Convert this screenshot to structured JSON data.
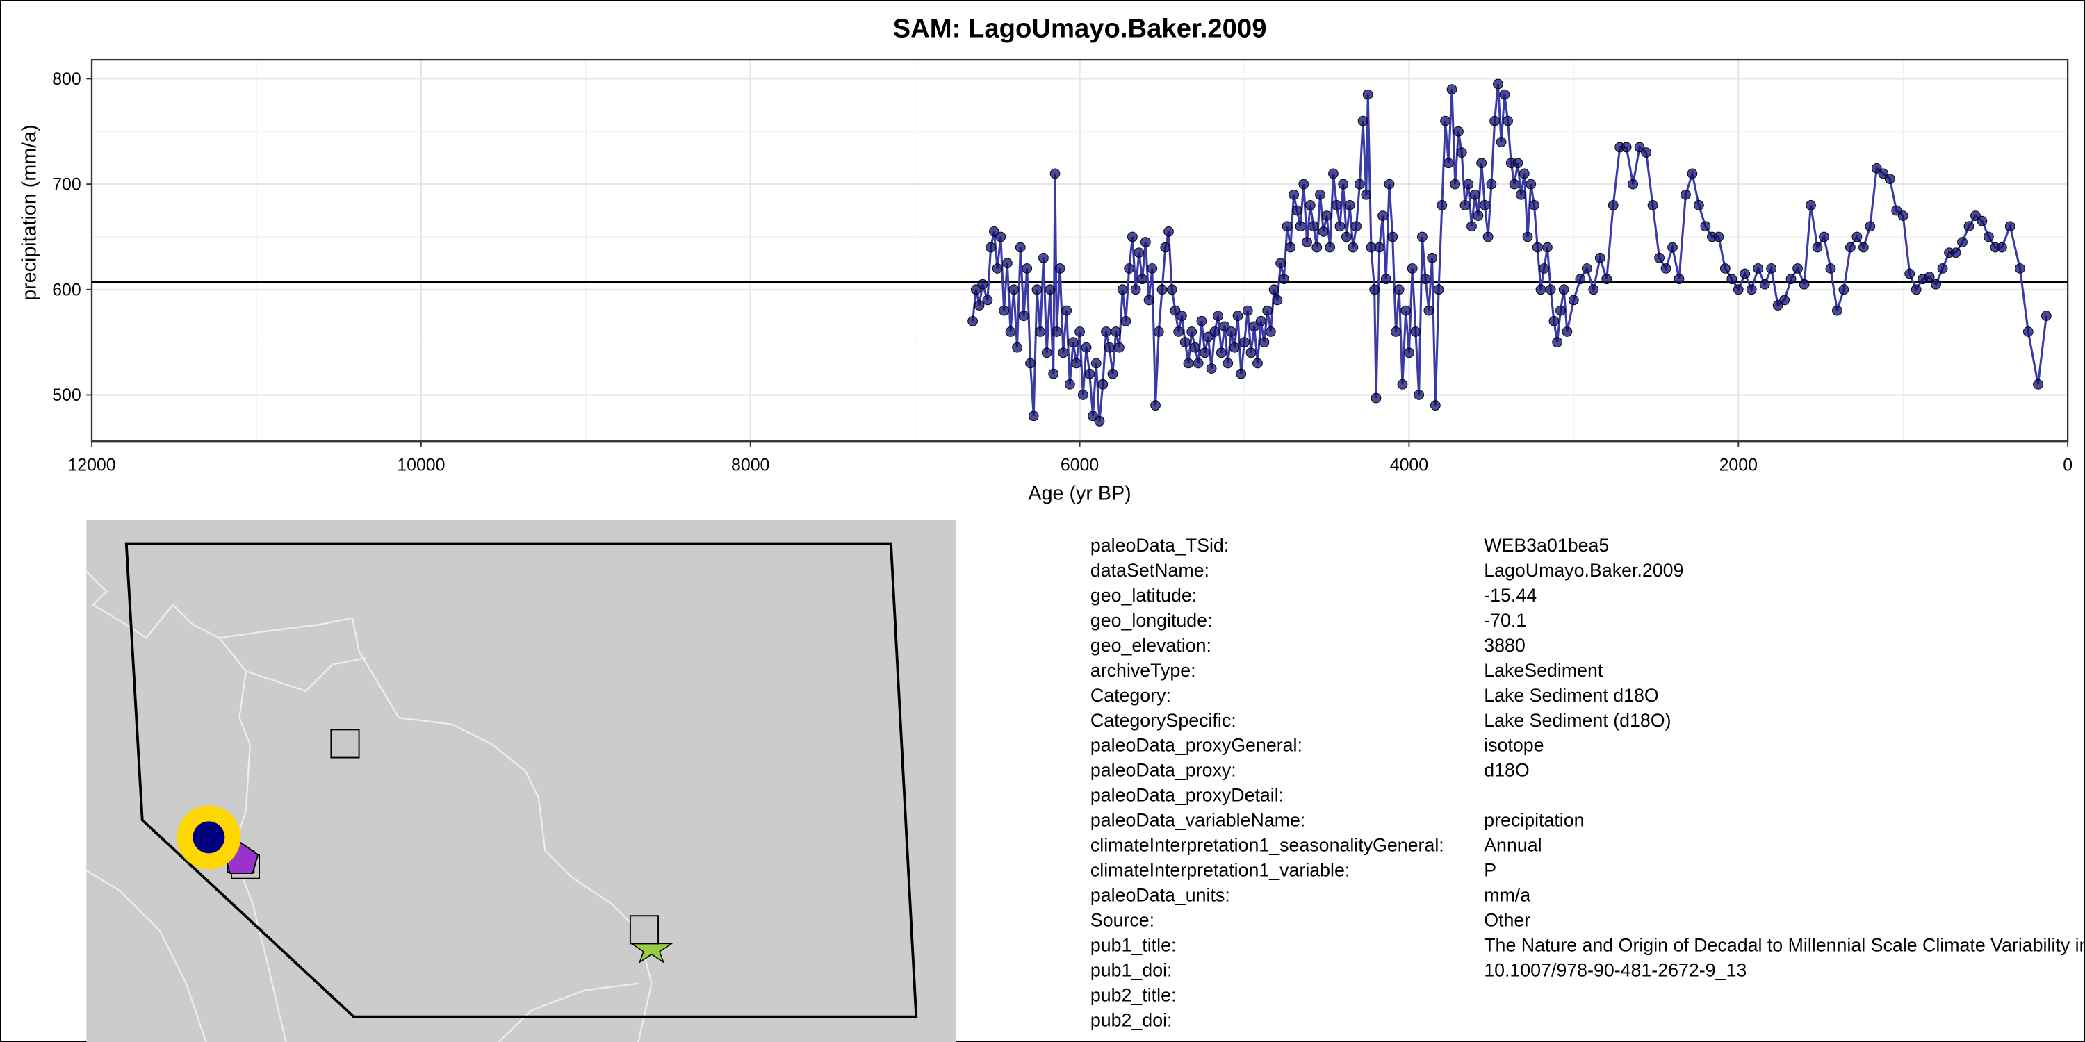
{
  "chart_data": {
    "type": "line",
    "title": "SAM: LagoUmayo.Baker.2009",
    "x_label": "Age (yr BP)",
    "y_label": "precipitation (mm/a)",
    "xlim": [
      12000,
      0
    ],
    "ylim": [
      456,
      818
    ],
    "xticks": [
      12000,
      10000,
      8000,
      6000,
      4000,
      2000,
      0
    ],
    "yticks": [
      500,
      600,
      700,
      800
    ],
    "xminor": [
      11000,
      9000,
      7000,
      5000,
      3000,
      1000
    ],
    "yminor": [
      550,
      650,
      750
    ],
    "grid": true,
    "hline": 607,
    "color": "#3a3aa8",
    "marker_color": "#101070",
    "x": [
      6650,
      6630,
      6610,
      6590,
      6560,
      6540,
      6520,
      6500,
      6480,
      6460,
      6440,
      6420,
      6400,
      6380,
      6360,
      6340,
      6320,
      6300,
      6280,
      6260,
      6240,
      6220,
      6200,
      6180,
      6160,
      6150,
      6140,
      6120,
      6100,
      6080,
      6060,
      6040,
      6020,
      6000,
      5980,
      5960,
      5940,
      5920,
      5900,
      5880,
      5860,
      5840,
      5820,
      5800,
      5780,
      5760,
      5740,
      5720,
      5700,
      5680,
      5660,
      5640,
      5620,
      5600,
      5580,
      5560,
      5540,
      5520,
      5500,
      5480,
      5460,
      5440,
      5420,
      5400,
      5380,
      5360,
      5340,
      5320,
      5300,
      5280,
      5260,
      5240,
      5220,
      5200,
      5180,
      5160,
      5140,
      5120,
      5100,
      5080,
      5060,
      5040,
      5020,
      5000,
      4980,
      4960,
      4940,
      4920,
      4900,
      4880,
      4860,
      4840,
      4820,
      4800,
      4780,
      4760,
      4740,
      4720,
      4700,
      4680,
      4660,
      4640,
      4620,
      4600,
      4580,
      4560,
      4540,
      4520,
      4500,
      4480,
      4460,
      4440,
      4420,
      4400,
      4380,
      4360,
      4340,
      4320,
      4300,
      4280,
      4260,
      4250,
      4230,
      4210,
      4200,
      4180,
      4160,
      4140,
      4120,
      4100,
      4080,
      4060,
      4040,
      4020,
      4000,
      3980,
      3960,
      3940,
      3920,
      3900,
      3880,
      3860,
      3840,
      3820,
      3800,
      3780,
      3760,
      3740,
      3720,
      3700,
      3680,
      3660,
      3640,
      3620,
      3600,
      3580,
      3560,
      3540,
      3520,
      3500,
      3480,
      3460,
      3440,
      3420,
      3400,
      3380,
      3360,
      3340,
      3320,
      3300,
      3280,
      3260,
      3240,
      3220,
      3200,
      3180,
      3160,
      3140,
      3120,
      3100,
      3080,
      3060,
      3040,
      3000,
      2960,
      2920,
      2880,
      2840,
      2800,
      2760,
      2720,
      2680,
      2640,
      2600,
      2560,
      2520,
      2480,
      2440,
      2400,
      2360,
      2320,
      2280,
      2240,
      2200,
      2160,
      2120,
      2080,
      2040,
      2000,
      1960,
      1920,
      1880,
      1840,
      1800,
      1760,
      1720,
      1680,
      1640,
      1600,
      1560,
      1520,
      1480,
      1440,
      1400,
      1360,
      1320,
      1280,
      1240,
      1200,
      1160,
      1120,
      1080,
      1040,
      1000,
      960,
      920,
      880,
      840,
      800,
      760,
      720,
      680,
      640,
      600,
      560,
      520,
      480,
      440,
      400,
      350,
      290,
      240,
      180,
      130
    ],
    "values": [
      570,
      600,
      585,
      605,
      590,
      640,
      655,
      620,
      650,
      580,
      625,
      560,
      600,
      545,
      640,
      575,
      620,
      530,
      480,
      600,
      560,
      630,
      540,
      600,
      520,
      710,
      560,
      620,
      540,
      580,
      510,
      550,
      530,
      560,
      500,
      545,
      520,
      480,
      530,
      475,
      510,
      560,
      545,
      520,
      560,
      545,
      600,
      570,
      620,
      650,
      600,
      635,
      610,
      645,
      590,
      620,
      490,
      560,
      600,
      640,
      655,
      600,
      580,
      560,
      575,
      550,
      530,
      560,
      545,
      530,
      570,
      540,
      555,
      525,
      560,
      575,
      540,
      565,
      530,
      560,
      545,
      575,
      520,
      550,
      580,
      540,
      565,
      530,
      570,
      550,
      580,
      560,
      600,
      590,
      625,
      610,
      660,
      640,
      690,
      675,
      660,
      700,
      645,
      680,
      660,
      640,
      690,
      655,
      670,
      640,
      710,
      680,
      660,
      700,
      650,
      680,
      640,
      660,
      700,
      760,
      690,
      785,
      640,
      600,
      497,
      640,
      670,
      610,
      700,
      650,
      560,
      600,
      510,
      580,
      540,
      620,
      560,
      500,
      650,
      610,
      580,
      630,
      490,
      600,
      680,
      760,
      720,
      790,
      700,
      750,
      730,
      680,
      700,
      660,
      690,
      670,
      720,
      680,
      650,
      700,
      760,
      795,
      740,
      785,
      760,
      720,
      700,
      720,
      690,
      710,
      650,
      700,
      680,
      640,
      600,
      620,
      640,
      600,
      570,
      550,
      580,
      600,
      560,
      590,
      610,
      620,
      600,
      630,
      610,
      680,
      735,
      735,
      700,
      735,
      730,
      680,
      630,
      620,
      640,
      610,
      690,
      710,
      680,
      660,
      650,
      650,
      620,
      610,
      600,
      615,
      600,
      620,
      605,
      620,
      585,
      590,
      610,
      620,
      605,
      680,
      640,
      650,
      620,
      580,
      600,
      640,
      650,
      640,
      660,
      715,
      710,
      705,
      675,
      670,
      615,
      600,
      610,
      612,
      605,
      620,
      635,
      635,
      645,
      660,
      670,
      665,
      650,
      640,
      640,
      660,
      620,
      560,
      510,
      575
    ]
  },
  "metadata": {
    "rows": [
      [
        "paleoData_TSid:",
        "WEB3a01bea5"
      ],
      [
        "dataSetName:",
        "LagoUmayo.Baker.2009"
      ],
      [
        "geo_latitude:",
        "-15.44"
      ],
      [
        "geo_longitude:",
        "-70.1"
      ],
      [
        "geo_elevation:",
        "3880"
      ],
      [
        "archiveType:",
        "LakeSediment"
      ],
      [
        "Category:",
        "Lake Sediment d18O"
      ],
      [
        "CategorySpecific:",
        "Lake Sediment (d18O)"
      ],
      [
        "paleoData_proxyGeneral:",
        "isotope"
      ],
      [
        "paleoData_proxy:",
        "d18O"
      ],
      [
        "paleoData_proxyDetail:"
      ],
      [
        "paleoData_variableName:",
        "precipitation"
      ],
      [
        "climateInterpretation1_seasonalityGeneral:",
        "Annual"
      ],
      [
        "climateInterpretation1_variable:",
        "P"
      ],
      [
        "paleoData_units:",
        "mm/a"
      ],
      [
        "Source:",
        "Other"
      ],
      [
        "pub1_title:",
        "The Nature and Origin of Decadal to Millennial Scale Climate Variability in the Southern Tropics of South America"
      ],
      [
        "pub1_doi:",
        "10.1007/978-90-481-2672-9_13"
      ],
      [
        "pub2_title:"
      ],
      [
        "pub2_doi:"
      ]
    ]
  }
}
